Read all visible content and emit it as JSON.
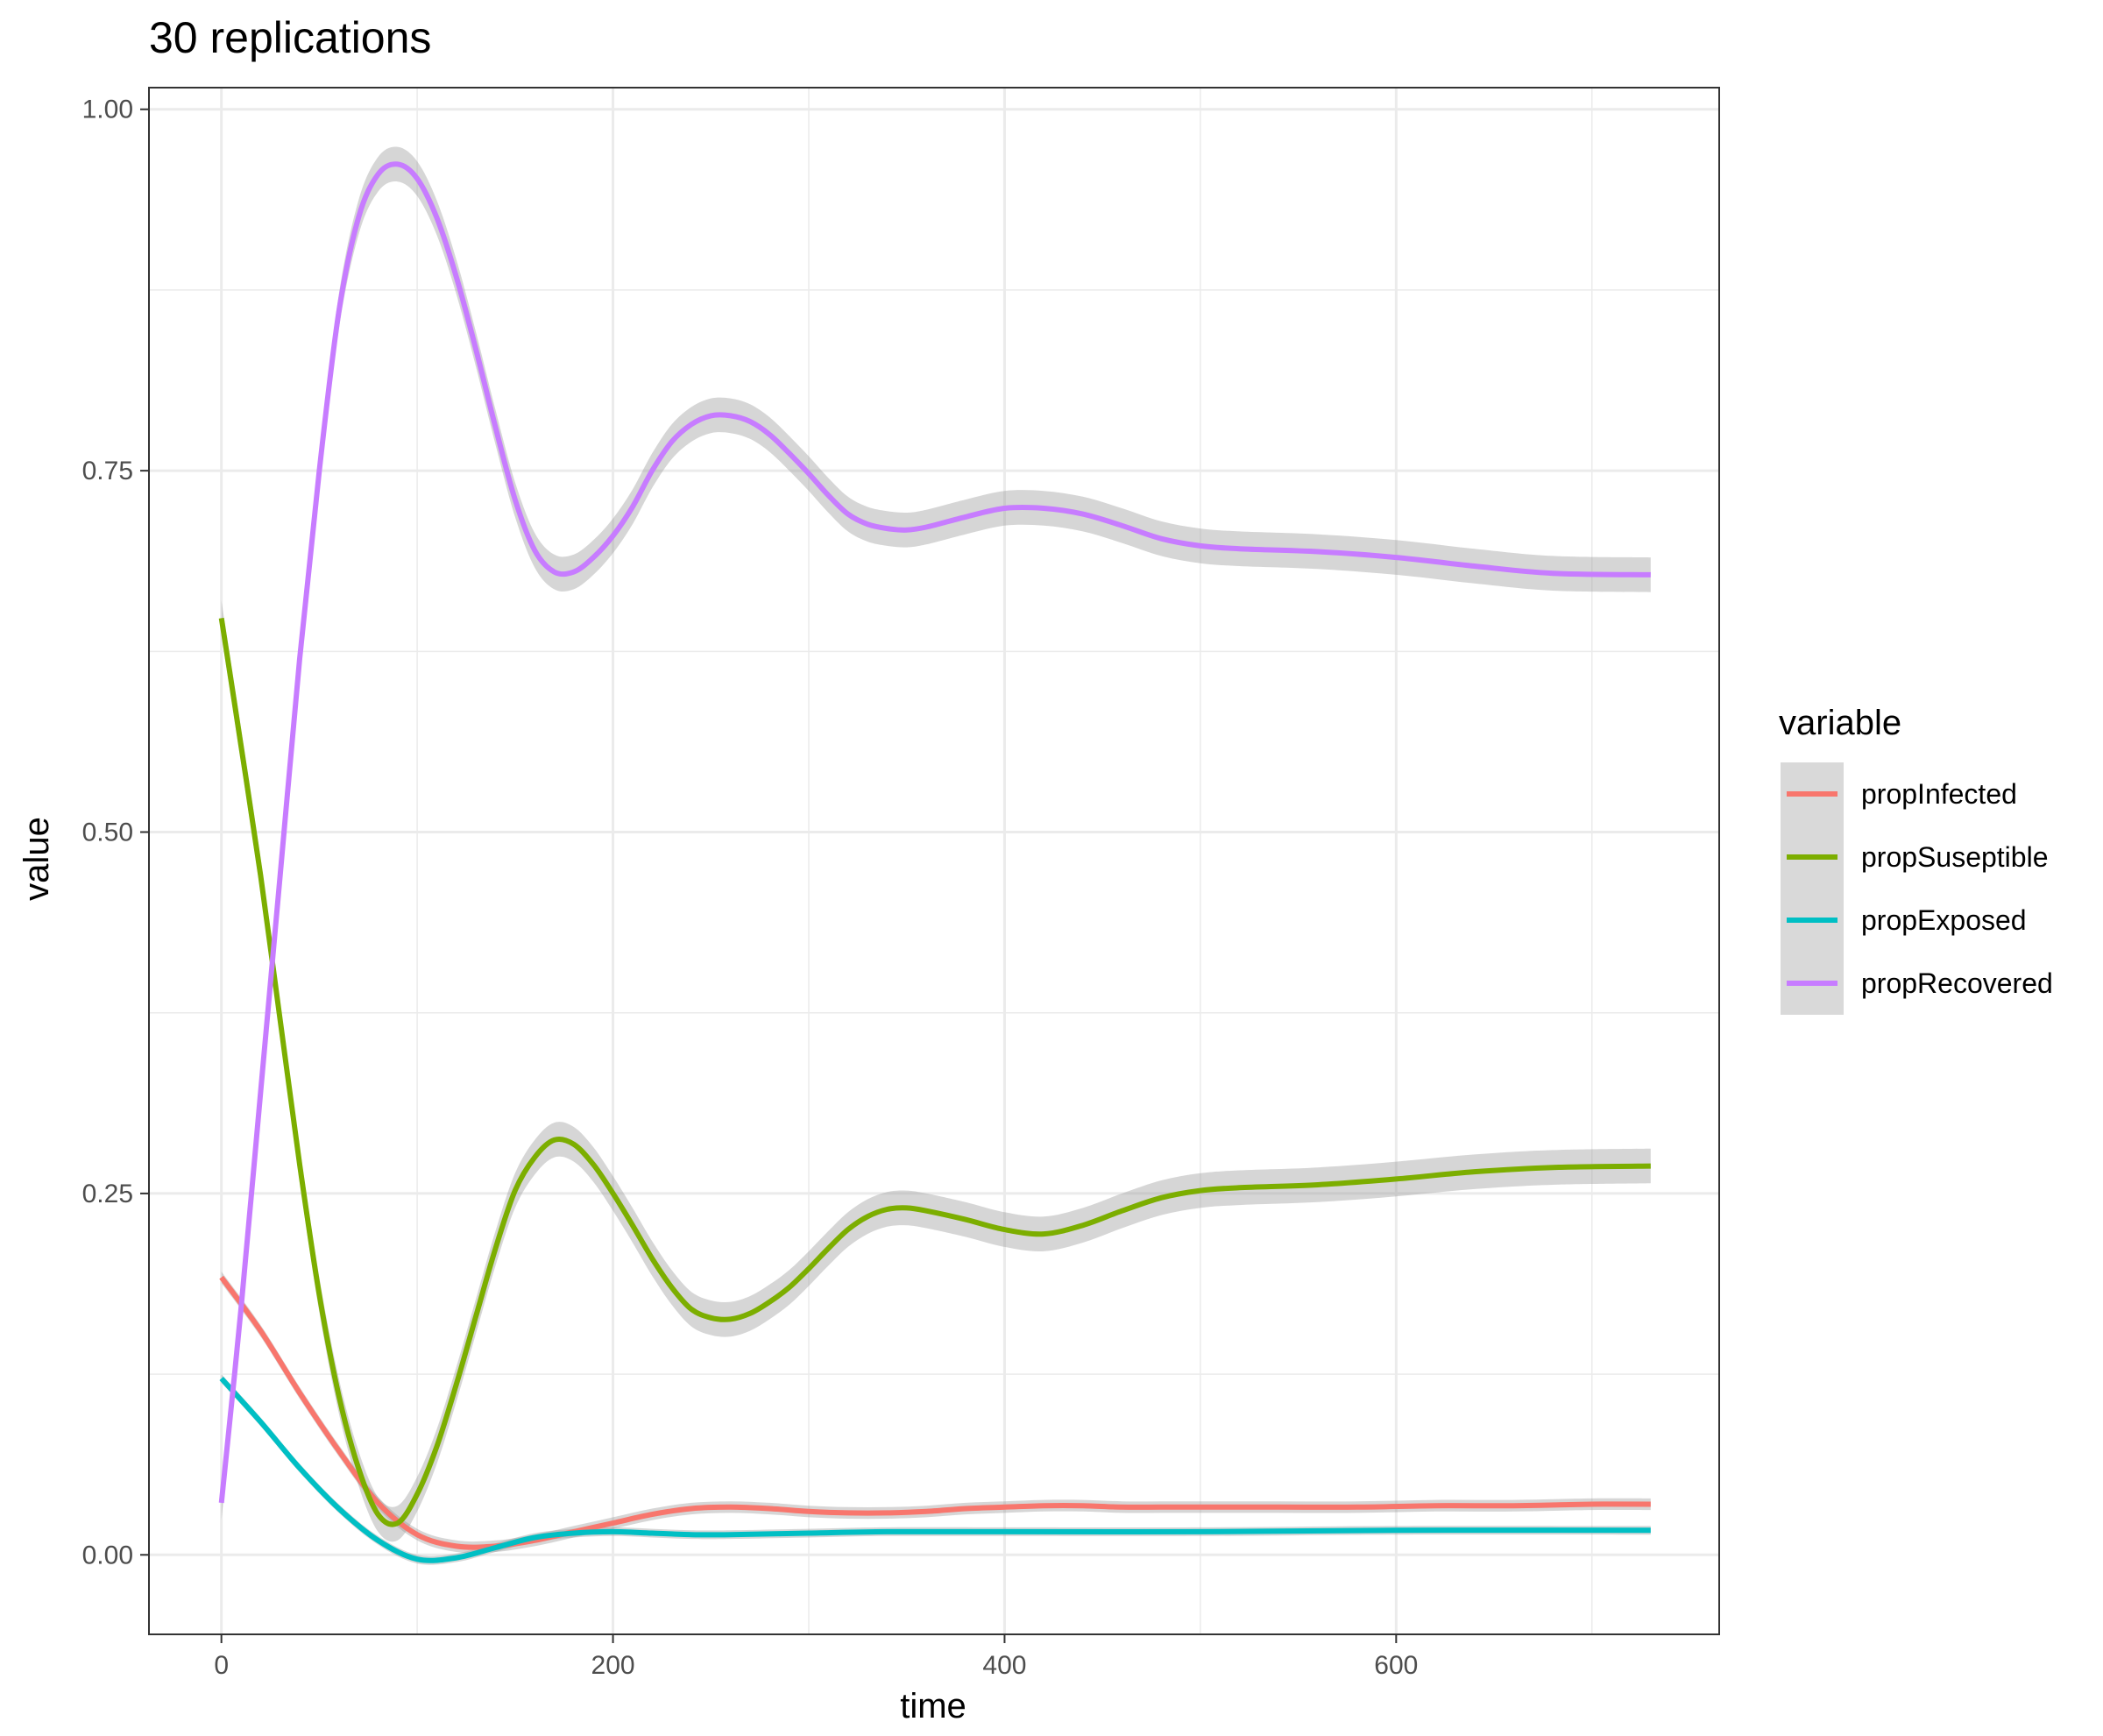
{
  "chart_data": {
    "type": "line",
    "title": "30 replications",
    "xlabel": "time",
    "ylabel": "value",
    "xlim": [
      -37,
      765
    ],
    "ylim": [
      -0.055,
      1.015
    ],
    "x_ticks": [
      0,
      200,
      400,
      600
    ],
    "y_ticks": [
      0.0,
      0.25,
      0.5,
      0.75,
      1.0
    ],
    "x_tick_labels": [
      "0",
      "200",
      "400",
      "600"
    ],
    "y_tick_labels": [
      "0.00",
      "0.25",
      "0.50",
      "0.75",
      "1.00"
    ],
    "grid": true,
    "confidence_band": true,
    "legend": {
      "title": "variable",
      "position": "right"
    },
    "series": [
      {
        "name": "propInfected",
        "color": "#F8766D",
        "points": [
          [
            0,
            0.192
          ],
          [
            20,
            0.155
          ],
          [
            40,
            0.112
          ],
          [
            60,
            0.072
          ],
          [
            80,
            0.036
          ],
          [
            100,
            0.014
          ],
          [
            120,
            0.006
          ],
          [
            140,
            0.006
          ],
          [
            160,
            0.01
          ],
          [
            180,
            0.016
          ],
          [
            200,
            0.022
          ],
          [
            220,
            0.028
          ],
          [
            240,
            0.032
          ],
          [
            260,
            0.033
          ],
          [
            280,
            0.032
          ],
          [
            300,
            0.03
          ],
          [
            320,
            0.029
          ],
          [
            340,
            0.029
          ],
          [
            360,
            0.03
          ],
          [
            380,
            0.032
          ],
          [
            400,
            0.033
          ],
          [
            420,
            0.034
          ],
          [
            440,
            0.034
          ],
          [
            460,
            0.033
          ],
          [
            480,
            0.033
          ],
          [
            500,
            0.033
          ],
          [
            540,
            0.033
          ],
          [
            580,
            0.033
          ],
          [
            620,
            0.034
          ],
          [
            660,
            0.034
          ],
          [
            700,
            0.035
          ],
          [
            730,
            0.035
          ]
        ],
        "band_width": 0.004
      },
      {
        "name": "propSuseptible",
        "color": "#7CAE00",
        "points": [
          [
            0,
            0.648
          ],
          [
            10,
            0.56
          ],
          [
            20,
            0.47
          ],
          [
            30,
            0.37
          ],
          [
            40,
            0.27
          ],
          [
            50,
            0.18
          ],
          [
            60,
            0.11
          ],
          [
            70,
            0.06
          ],
          [
            80,
            0.028
          ],
          [
            90,
            0.022
          ],
          [
            100,
            0.042
          ],
          [
            110,
            0.075
          ],
          [
            120,
            0.118
          ],
          [
            130,
            0.165
          ],
          [
            140,
            0.212
          ],
          [
            150,
            0.252
          ],
          [
            160,
            0.275
          ],
          [
            170,
            0.287
          ],
          [
            180,
            0.284
          ],
          [
            190,
            0.27
          ],
          [
            200,
            0.25
          ],
          [
            210,
            0.228
          ],
          [
            220,
            0.205
          ],
          [
            230,
            0.185
          ],
          [
            240,
            0.17
          ],
          [
            250,
            0.164
          ],
          [
            260,
            0.163
          ],
          [
            270,
            0.167
          ],
          [
            280,
            0.175
          ],
          [
            290,
            0.185
          ],
          [
            300,
            0.198
          ],
          [
            310,
            0.212
          ],
          [
            320,
            0.225
          ],
          [
            330,
            0.234
          ],
          [
            340,
            0.239
          ],
          [
            350,
            0.24
          ],
          [
            360,
            0.238
          ],
          [
            380,
            0.232
          ],
          [
            400,
            0.225
          ],
          [
            420,
            0.222
          ],
          [
            440,
            0.228
          ],
          [
            460,
            0.238
          ],
          [
            480,
            0.247
          ],
          [
            500,
            0.252
          ],
          [
            520,
            0.254
          ],
          [
            560,
            0.256
          ],
          [
            600,
            0.26
          ],
          [
            640,
            0.265
          ],
          [
            680,
            0.268
          ],
          [
            730,
            0.269
          ]
        ],
        "band_width": 0.012
      },
      {
        "name": "propExposed",
        "color": "#00BFC4",
        "points": [
          [
            0,
            0.122
          ],
          [
            20,
            0.092
          ],
          [
            40,
            0.06
          ],
          [
            60,
            0.032
          ],
          [
            80,
            0.01
          ],
          [
            100,
            -0.003
          ],
          [
            120,
            -0.002
          ],
          [
            140,
            0.005
          ],
          [
            160,
            0.012
          ],
          [
            180,
            0.015
          ],
          [
            200,
            0.016
          ],
          [
            220,
            0.015
          ],
          [
            240,
            0.014
          ],
          [
            260,
            0.014
          ],
          [
            300,
            0.015
          ],
          [
            340,
            0.016
          ],
          [
            400,
            0.016
          ],
          [
            500,
            0.016
          ],
          [
            600,
            0.017
          ],
          [
            730,
            0.017
          ]
        ],
        "band_width": 0.003
      },
      {
        "name": "propRecovered",
        "color": "#C77CFF",
        "points": [
          [
            0,
            0.036
          ],
          [
            10,
            0.17
          ],
          [
            20,
            0.32
          ],
          [
            30,
            0.47
          ],
          [
            40,
            0.62
          ],
          [
            50,
            0.75
          ],
          [
            60,
            0.86
          ],
          [
            70,
            0.925
          ],
          [
            80,
            0.955
          ],
          [
            90,
            0.962
          ],
          [
            100,
            0.952
          ],
          [
            110,
            0.925
          ],
          [
            120,
            0.884
          ],
          [
            130,
            0.834
          ],
          [
            140,
            0.78
          ],
          [
            150,
            0.73
          ],
          [
            160,
            0.695
          ],
          [
            170,
            0.68
          ],
          [
            180,
            0.68
          ],
          [
            190,
            0.69
          ],
          [
            200,
            0.705
          ],
          [
            210,
            0.725
          ],
          [
            220,
            0.75
          ],
          [
            230,
            0.77
          ],
          [
            240,
            0.782
          ],
          [
            250,
            0.788
          ],
          [
            260,
            0.788
          ],
          [
            270,
            0.784
          ],
          [
            280,
            0.775
          ],
          [
            290,
            0.762
          ],
          [
            300,
            0.748
          ],
          [
            310,
            0.733
          ],
          [
            320,
            0.72
          ],
          [
            330,
            0.713
          ],
          [
            340,
            0.71
          ],
          [
            350,
            0.709
          ],
          [
            360,
            0.711
          ],
          [
            380,
            0.718
          ],
          [
            400,
            0.724
          ],
          [
            420,
            0.724
          ],
          [
            440,
            0.72
          ],
          [
            460,
            0.712
          ],
          [
            480,
            0.703
          ],
          [
            500,
            0.698
          ],
          [
            520,
            0.696
          ],
          [
            560,
            0.694
          ],
          [
            600,
            0.69
          ],
          [
            640,
            0.684
          ],
          [
            680,
            0.679
          ],
          [
            730,
            0.678
          ]
        ],
        "band_width": 0.012
      }
    ]
  }
}
